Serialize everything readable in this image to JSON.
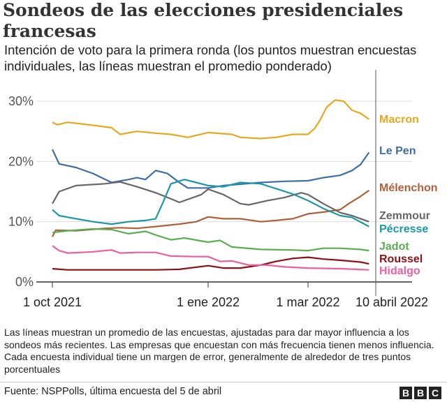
{
  "title": "Sondeos de las elecciones presidenciales francesas",
  "subtitle": "Intención de voto para la primera ronda (los puntos muestran encuestas individuales, las líneas muestran el promedio ponderado)",
  "note": "Las líneas muestran un promedio de las encuestas, ajustadas para dar mayor influencia a los sondeos más recientes. Las empresas que encuestan con más frecuencia tienen menos influencia. Cada encuesta individual tiene un margen de error, generalmente de alrededor de tres puntos porcentuales",
  "source": "Fuente: NSPPolls, última encuesta del 5 de abril",
  "logo": [
    "B",
    "B",
    "C"
  ],
  "chart_data": {
    "type": "line",
    "title": "Sondeos de las elecciones presidenciales francesas",
    "ylim": [
      0,
      30
    ],
    "yticks": [
      {
        "v": 0,
        "label": "0%"
      },
      {
        "v": 10,
        "label": "10%"
      },
      {
        "v": 20,
        "label": "20%"
      },
      {
        "v": 30,
        "label": "30%"
      }
    ],
    "xlim": [
      "2021-10-01",
      "2022-04-10"
    ],
    "xticks": [
      {
        "date": "2021-10-01",
        "label": "1 oct 2021"
      },
      {
        "date": "2022-01-01",
        "label": "1 ene 2022"
      },
      {
        "date": "2022-03-01",
        "label": "1 mar 2022"
      },
      {
        "date": "2022-04-10",
        "label": "10 abril 2022"
      }
    ],
    "marker_line": "2022-04-10",
    "grid": true,
    "legend": "direct labels right",
    "series": [
      {
        "name": "Macron",
        "color": "#e8a81c",
        "points": [
          [
            "2021-10-01",
            26.5
          ],
          [
            "2021-10-04",
            26.1
          ],
          [
            "2021-10-10",
            26.5
          ],
          [
            "2021-10-25",
            26
          ],
          [
            "2021-11-05",
            25.6
          ],
          [
            "2021-11-10",
            24.5
          ],
          [
            "2021-11-20",
            25
          ],
          [
            "2021-12-01",
            24.7
          ],
          [
            "2021-12-10",
            24.5
          ],
          [
            "2021-12-20",
            24
          ],
          [
            "2022-01-01",
            24.8
          ],
          [
            "2022-01-15",
            24.5
          ],
          [
            "2022-01-20",
            24
          ],
          [
            "2022-02-01",
            23.8
          ],
          [
            "2022-02-10",
            24
          ],
          [
            "2022-02-20",
            24.5
          ],
          [
            "2022-03-01",
            24.5
          ],
          [
            "2022-03-05",
            25.5
          ],
          [
            "2022-03-08",
            26.8
          ],
          [
            "2022-03-12",
            29
          ],
          [
            "2022-03-17",
            30.2
          ],
          [
            "2022-03-22",
            30
          ],
          [
            "2022-03-27",
            28.5
          ],
          [
            "2022-04-01",
            28
          ],
          [
            "2022-04-06",
            27
          ]
        ]
      },
      {
        "name": "Le Pen",
        "color": "#3d6ea5",
        "points": [
          [
            "2021-10-01",
            22
          ],
          [
            "2021-10-05",
            19.6
          ],
          [
            "2021-10-15",
            19
          ],
          [
            "2021-10-25",
            18
          ],
          [
            "2021-11-05",
            16.5
          ],
          [
            "2021-11-15",
            17
          ],
          [
            "2021-11-20",
            17.3
          ],
          [
            "2021-11-25",
            17
          ],
          [
            "2021-12-01",
            18.5
          ],
          [
            "2021-12-08",
            18
          ],
          [
            "2021-12-15",
            16.5
          ],
          [
            "2021-12-20",
            15.6
          ],
          [
            "2022-01-01",
            15.6
          ],
          [
            "2022-01-10",
            16
          ],
          [
            "2022-02-01",
            16.5
          ],
          [
            "2022-02-15",
            16.7
          ],
          [
            "2022-03-01",
            16.8
          ],
          [
            "2022-03-10",
            17.3
          ],
          [
            "2022-03-20",
            17.7
          ],
          [
            "2022-03-27",
            18.5
          ],
          [
            "2022-04-01",
            19.5
          ],
          [
            "2022-04-06",
            21.5
          ]
        ]
      },
      {
        "name": "Mélenchon",
        "color": "#b0603a",
        "points": [
          [
            "2021-10-01",
            7.5
          ],
          [
            "2021-10-03",
            8.6
          ],
          [
            "2021-10-15",
            8.5
          ],
          [
            "2021-11-01",
            8.9
          ],
          [
            "2021-11-10",
            9
          ],
          [
            "2021-11-20",
            8.9
          ],
          [
            "2021-12-01",
            9.2
          ],
          [
            "2021-12-15",
            9.6
          ],
          [
            "2021-12-25",
            10
          ],
          [
            "2022-01-01",
            10.8
          ],
          [
            "2022-01-10",
            10.5
          ],
          [
            "2022-01-20",
            10.5
          ],
          [
            "2022-02-01",
            10
          ],
          [
            "2022-02-10",
            10.2
          ],
          [
            "2022-02-20",
            10.5
          ],
          [
            "2022-03-01",
            11.3
          ],
          [
            "2022-03-10",
            11.6
          ],
          [
            "2022-03-20",
            12
          ],
          [
            "2022-03-25",
            13
          ],
          [
            "2022-04-01",
            14.2
          ],
          [
            "2022-04-06",
            15.2
          ]
        ]
      },
      {
        "name": "Zemmour",
        "color": "#666666",
        "points": [
          [
            "2021-10-01",
            13
          ],
          [
            "2021-10-05",
            15
          ],
          [
            "2021-10-15",
            16
          ],
          [
            "2021-11-01",
            16.3
          ],
          [
            "2021-11-10",
            16.6
          ],
          [
            "2021-11-20",
            15.8
          ],
          [
            "2021-12-01",
            14.8
          ],
          [
            "2021-12-10",
            13.8
          ],
          [
            "2021-12-15",
            13.2
          ],
          [
            "2021-12-20",
            13.7
          ],
          [
            "2021-12-28",
            14.5
          ],
          [
            "2022-01-01",
            15.4
          ],
          [
            "2022-01-10",
            14.5
          ],
          [
            "2022-01-20",
            13
          ],
          [
            "2022-01-25",
            12.8
          ],
          [
            "2022-02-05",
            13.5
          ],
          [
            "2022-02-15",
            14
          ],
          [
            "2022-02-25",
            14.8
          ],
          [
            "2022-03-01",
            14.5
          ],
          [
            "2022-03-10",
            13
          ],
          [
            "2022-03-20",
            11.5
          ],
          [
            "2022-03-27",
            11
          ],
          [
            "2022-04-06",
            10
          ]
        ]
      },
      {
        "name": "Pécresse",
        "color": "#1a98aa",
        "points": [
          [
            "2021-10-01",
            12
          ],
          [
            "2021-10-05",
            11
          ],
          [
            "2021-10-15",
            10.5
          ],
          [
            "2021-10-25",
            10
          ],
          [
            "2021-11-05",
            9.6
          ],
          [
            "2021-11-15",
            10
          ],
          [
            "2021-11-25",
            10.2
          ],
          [
            "2021-12-01",
            10.5
          ],
          [
            "2021-12-05",
            13
          ],
          [
            "2021-12-10",
            16.3
          ],
          [
            "2021-12-18",
            17
          ],
          [
            "2021-12-25",
            16.5
          ],
          [
            "2022-01-01",
            16
          ],
          [
            "2022-01-10",
            15.8
          ],
          [
            "2022-01-20",
            16.5
          ],
          [
            "2022-02-01",
            16.3
          ],
          [
            "2022-02-10",
            15.5
          ],
          [
            "2022-02-20",
            14.6
          ],
          [
            "2022-03-01",
            13.5
          ],
          [
            "2022-03-10",
            12.2
          ],
          [
            "2022-03-20",
            11
          ],
          [
            "2022-03-27",
            10.7
          ],
          [
            "2022-04-06",
            9.2
          ]
        ]
      },
      {
        "name": "Jadot",
        "color": "#5aae50",
        "points": [
          [
            "2021-10-01",
            8.2
          ],
          [
            "2021-10-10",
            8.5
          ],
          [
            "2021-10-25",
            8.8
          ],
          [
            "2021-11-05",
            8.7
          ],
          [
            "2021-11-15",
            8
          ],
          [
            "2021-11-25",
            8.4
          ],
          [
            "2021-12-01",
            7.8
          ],
          [
            "2021-12-10",
            7
          ],
          [
            "2021-12-18",
            7.3
          ],
          [
            "2022-01-01",
            6.6
          ],
          [
            "2022-01-08",
            6.9
          ],
          [
            "2022-01-15",
            5.8
          ],
          [
            "2022-02-01",
            5.4
          ],
          [
            "2022-02-20",
            5.3
          ],
          [
            "2022-03-01",
            5.2
          ],
          [
            "2022-03-10",
            5.6
          ],
          [
            "2022-03-20",
            5.6
          ],
          [
            "2022-04-01",
            5.4
          ],
          [
            "2022-04-06",
            5.2
          ]
        ]
      },
      {
        "name": "Roussel",
        "color": "#8c1014",
        "points": [
          [
            "2021-10-01",
            2.2
          ],
          [
            "2021-10-10",
            2
          ],
          [
            "2021-11-01",
            2
          ],
          [
            "2021-12-01",
            2
          ],
          [
            "2021-12-15",
            2.1
          ],
          [
            "2022-01-01",
            2.7
          ],
          [
            "2022-01-10",
            2.3
          ],
          [
            "2022-01-20",
            2.3
          ],
          [
            "2022-02-01",
            2.8
          ],
          [
            "2022-02-10",
            3.4
          ],
          [
            "2022-02-20",
            3.9
          ],
          [
            "2022-03-01",
            4.1
          ],
          [
            "2022-03-10",
            3.8
          ],
          [
            "2022-03-20",
            3.6
          ],
          [
            "2022-04-01",
            3.3
          ],
          [
            "2022-04-06",
            3
          ]
        ]
      },
      {
        "name": "Hidalgo",
        "color": "#ee5d9c",
        "points": [
          [
            "2021-10-01",
            6
          ],
          [
            "2021-10-05",
            5.2
          ],
          [
            "2021-10-10",
            4.8
          ],
          [
            "2021-10-25",
            5
          ],
          [
            "2021-11-05",
            5.3
          ],
          [
            "2021-11-10",
            4.8
          ],
          [
            "2021-11-20",
            4.9
          ],
          [
            "2021-12-01",
            4.9
          ],
          [
            "2021-12-10",
            4.3
          ],
          [
            "2021-12-25",
            4.2
          ],
          [
            "2022-01-01",
            4.2
          ],
          [
            "2022-01-08",
            3.4
          ],
          [
            "2022-01-15",
            3.5
          ],
          [
            "2022-01-25",
            2.8
          ],
          [
            "2022-02-05",
            2.8
          ],
          [
            "2022-02-15",
            2.5
          ],
          [
            "2022-03-01",
            2.3
          ],
          [
            "2022-03-20",
            2.2
          ],
          [
            "2022-04-06",
            2
          ]
        ]
      }
    ]
  }
}
